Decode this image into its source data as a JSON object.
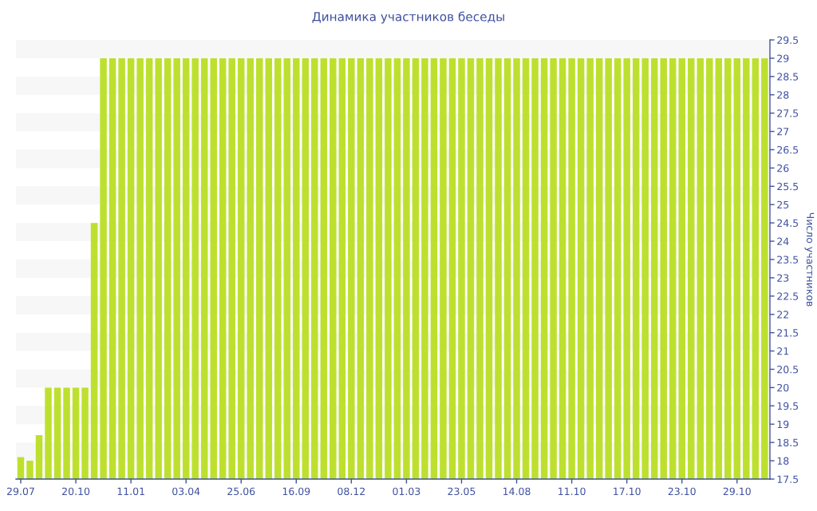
{
  "chart_data": {
    "type": "bar",
    "title": "Динамика участников беседы",
    "ylabel": "Число участников",
    "categories": [
      "29.07",
      null,
      null,
      null,
      null,
      null,
      "20.10",
      null,
      null,
      null,
      null,
      null,
      "11.01",
      null,
      null,
      null,
      null,
      null,
      "03.04",
      null,
      null,
      null,
      null,
      null,
      "25.06",
      null,
      null,
      null,
      null,
      null,
      "16.09",
      null,
      null,
      null,
      null,
      null,
      "08.12",
      null,
      null,
      null,
      null,
      null,
      "01.03",
      null,
      null,
      null,
      null,
      null,
      "23.05",
      null,
      null,
      null,
      null,
      null,
      "14.08",
      null,
      null,
      null,
      null,
      null,
      "11.10",
      null,
      null,
      null,
      null,
      null,
      "17.10",
      null,
      null,
      null,
      null,
      null,
      "23.10",
      null,
      null,
      null,
      null,
      null,
      "29.10",
      null,
      null,
      null
    ],
    "values": [
      18.1,
      18,
      18.7,
      20,
      20,
      20,
      20,
      20,
      24.5,
      29,
      29,
      29,
      29,
      29,
      29,
      29,
      29,
      29,
      29,
      29,
      29,
      29,
      29,
      29,
      29,
      29,
      29,
      29,
      29,
      29,
      29,
      29,
      29,
      29,
      29,
      29,
      29,
      29,
      29,
      29,
      29,
      29,
      29,
      29,
      29,
      29,
      29,
      29,
      29,
      29,
      29,
      29,
      29,
      29,
      29,
      29,
      29,
      29,
      29,
      29,
      29,
      29,
      29,
      29,
      29,
      29,
      29,
      29,
      29,
      29,
      29,
      29,
      29,
      29,
      29,
      29,
      29,
      29,
      29,
      29,
      29,
      29
    ],
    "color": "#bde02f",
    "ylim": [
      17.5,
      29.5
    ],
    "yticks": [
      17.5,
      18,
      18.5,
      19,
      19.5,
      20,
      20.5,
      21,
      21.5,
      22,
      22.5,
      23,
      23.5,
      24,
      24.5,
      25,
      25.5,
      26,
      26.5,
      27,
      27.5,
      28,
      28.5,
      29,
      29.5
    ],
    "bands": [
      {
        "axis": "y",
        "from": 18,
        "to": 18.5,
        "color": "#f7f7f7"
      },
      {
        "axis": "y",
        "from": 19,
        "to": 19.5,
        "color": "#f7f7f7"
      },
      {
        "axis": "y",
        "from": 20,
        "to": 20.5,
        "color": "#f7f7f7"
      },
      {
        "axis": "y",
        "from": 21,
        "to": 21.5,
        "color": "#f7f7f7"
      },
      {
        "axis": "y",
        "from": 22,
        "to": 22.5,
        "color": "#f7f7f7"
      },
      {
        "axis": "y",
        "from": 23,
        "to": 23.5,
        "color": "#f7f7f7"
      },
      {
        "axis": "y",
        "from": 24,
        "to": 24.5,
        "color": "#f7f7f7"
      },
      {
        "axis": "y",
        "from": 25,
        "to": 25.5,
        "color": "#f7f7f7"
      },
      {
        "axis": "y",
        "from": 26,
        "to": 26.5,
        "color": "#f7f7f7"
      },
      {
        "axis": "y",
        "from": 27,
        "to": 27.5,
        "color": "#f7f7f7"
      },
      {
        "axis": "y",
        "from": 28,
        "to": 28.5,
        "color": "#f7f7f7"
      },
      {
        "axis": "y",
        "from": 29,
        "to": 29.5,
        "color": "#f7f7f7"
      }
    ]
  }
}
